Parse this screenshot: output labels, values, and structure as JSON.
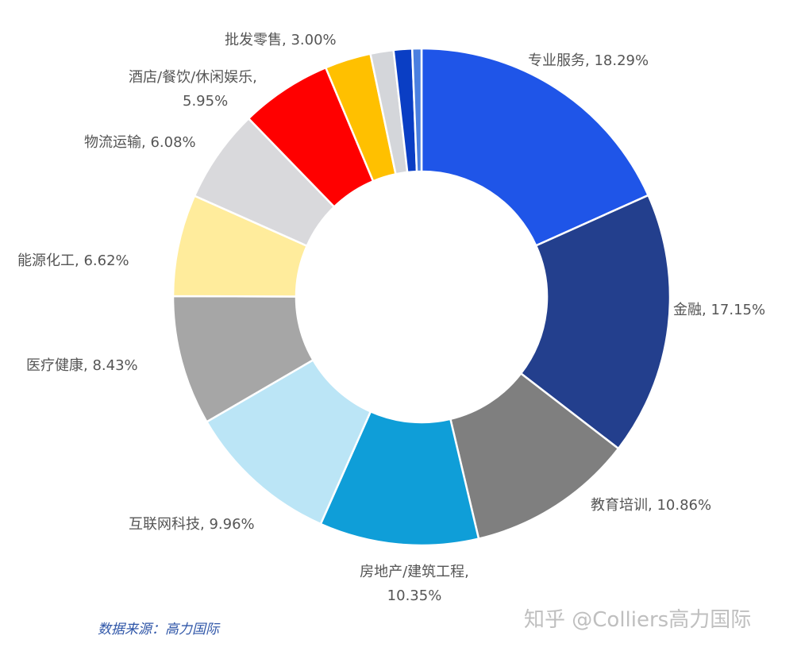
{
  "chart_data": {
    "type": "pie",
    "chart_style": "donut",
    "categories": [
      "专业服务",
      "金融",
      "教育培训",
      "房地产/建筑工程",
      "互联网科技",
      "医疗健康",
      "能源化工",
      "物流运输",
      "酒店/餐饮/休闲娱乐",
      "批发零售",
      "",
      "",
      ""
    ],
    "values": [
      18.29,
      17.15,
      10.86,
      10.35,
      9.96,
      8.43,
      6.62,
      6.08,
      5.95,
      3.0,
      1.5,
      1.2,
      0.6
    ],
    "colors": [
      "#1f55e8",
      "#233f8d",
      "#7f7f7f",
      "#0f9ed8",
      "#bbe5f6",
      "#a6a6a6",
      "#ffec9c",
      "#d9d9dc",
      "#ff0000",
      "#ffc000",
      "#d4d6da",
      "#0a3ec4",
      "#4a7fe0"
    ],
    "labels": [
      [
        "专业服务, 18.29%"
      ],
      [
        "金融, 17.15%"
      ],
      [
        "教育培训, 10.86%"
      ],
      [
        "房地产/建筑工程,",
        "10.35%"
      ],
      [
        "互联网科技, 9.96%"
      ],
      [
        "医疗健康, 8.43%"
      ],
      [
        "能源化工, 6.62%"
      ],
      [
        "物流运输, 6.08%"
      ],
      [
        "酒店/餐饮/休闲娱乐,",
        "5.95%"
      ],
      [
        "批发零售, 3.00%"
      ],
      [],
      [],
      []
    ],
    "unit": "%",
    "legend": "none"
  },
  "source_note": "数据来源：高力国际",
  "watermark": "知乎 @Colliers高力国际"
}
